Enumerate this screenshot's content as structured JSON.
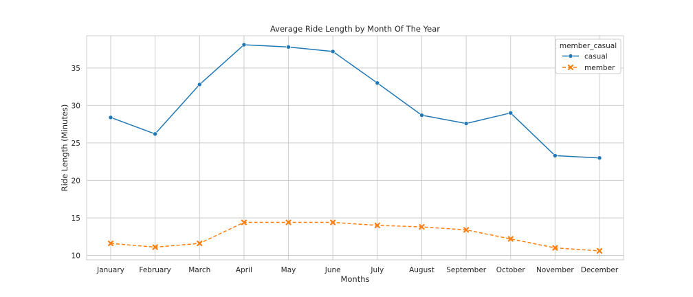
{
  "chart_data": {
    "type": "line",
    "title": "Average Ride Length by Month Of The Year",
    "xlabel": "Months",
    "ylabel": "Ride Length (Minutes)",
    "categories": [
      "January",
      "February",
      "March",
      "April",
      "May",
      "June",
      "July",
      "August",
      "September",
      "October",
      "November",
      "December"
    ],
    "ylim": [
      9.4,
      39.3
    ],
    "yticks": [
      10,
      15,
      20,
      25,
      30,
      35
    ],
    "grid": true,
    "legend": {
      "title": "member_casual",
      "placement": "top-right"
    },
    "series": [
      {
        "name": "casual",
        "color": "#1f77b4",
        "marker": "circle",
        "linestyle": "solid",
        "values": [
          28.4,
          26.2,
          32.8,
          38.1,
          37.8,
          37.2,
          33.0,
          28.7,
          27.6,
          29.0,
          23.3,
          23.0
        ]
      },
      {
        "name": "member",
        "color": "#ff7f0e",
        "marker": "x",
        "linestyle": "dashed",
        "values": [
          11.6,
          11.1,
          11.6,
          14.4,
          14.4,
          14.4,
          14.0,
          13.8,
          13.4,
          12.2,
          11.0,
          10.6
        ]
      }
    ]
  }
}
